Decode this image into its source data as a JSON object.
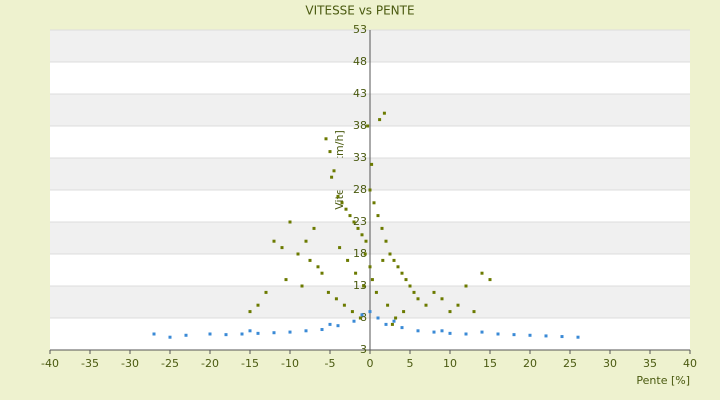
{
  "chart_data": {
    "type": "scatter",
    "title": "VITESSE vs PENTE",
    "x_label": "Pente [%]",
    "y_label": "Vitesse [km/h]",
    "xlim": [
      -40,
      40
    ],
    "xticks": [
      -40,
      -35,
      -30,
      -25,
      -20,
      -15,
      -10,
      -5,
      0,
      5,
      10,
      15,
      20,
      25,
      30,
      35,
      40
    ],
    "ylim": [
      3,
      53
    ],
    "yticks": [
      3,
      8,
      13,
      18,
      23,
      28,
      33,
      38,
      43,
      48,
      53
    ],
    "series": [
      {
        "color": "#6b7a00",
        "x": [
          -5.5,
          -5,
          -4.5,
          -4.8,
          -4,
          -3.5,
          -3,
          -2.5,
          -2,
          -1.5,
          -1,
          -0.5,
          0,
          0.5,
          1,
          1.5,
          2,
          -0.3,
          0.2,
          1.2,
          1.8,
          -12,
          -11,
          -10,
          -9,
          -8,
          -7,
          -6,
          -13,
          -14,
          -15,
          -10.5,
          -8.5,
          -7.5,
          -6.5,
          -3.8,
          -2.8,
          -1.8,
          -0.8,
          0.8,
          2.5,
          3,
          3.5,
          4,
          4.5,
          5,
          5.5,
          6,
          7,
          8,
          9,
          10,
          11,
          12,
          13,
          14,
          15,
          2.2,
          3.2,
          4.2,
          -1.2,
          -2.2,
          -3.2,
          -4.2,
          -5.2,
          0,
          0.3,
          -0.6,
          1.6,
          2.8
        ],
        "values": [
          36,
          34,
          31,
          30,
          27,
          26,
          25,
          24,
          23,
          22,
          21,
          20,
          28,
          26,
          24,
          22,
          20,
          38,
          32,
          39,
          40,
          20,
          19,
          23,
          18,
          20,
          22,
          15,
          12,
          10,
          9,
          14,
          13,
          17,
          16,
          19,
          17,
          15,
          13,
          12,
          18,
          17,
          16,
          15,
          14,
          13,
          12,
          11,
          10,
          12,
          11,
          9,
          10,
          13,
          9,
          15,
          14,
          10,
          8,
          9,
          8,
          9,
          10,
          11,
          12,
          16,
          14,
          18,
          17,
          7
        ]
      },
      {
        "color": "#3a8ad6",
        "x": [
          -27,
          -25,
          -23,
          -20,
          -18,
          -16,
          -14,
          -12,
          -10,
          -8,
          -6,
          -4,
          -2,
          -1,
          0,
          1,
          2,
          4,
          6,
          8,
          10,
          12,
          14,
          16,
          18,
          20,
          22,
          24,
          26,
          -15,
          -5,
          3,
          9
        ],
        "values": [
          5.5,
          5,
          5.3,
          5.5,
          5.4,
          5.5,
          5.6,
          5.7,
          5.8,
          6,
          6.2,
          6.8,
          7.5,
          8.5,
          9,
          8,
          7,
          6.5,
          6,
          5.8,
          5.6,
          5.5,
          5.8,
          5.5,
          5.4,
          5.3,
          5.2,
          5.1,
          5,
          6,
          7,
          7.5,
          6
        ]
      }
    ]
  }
}
